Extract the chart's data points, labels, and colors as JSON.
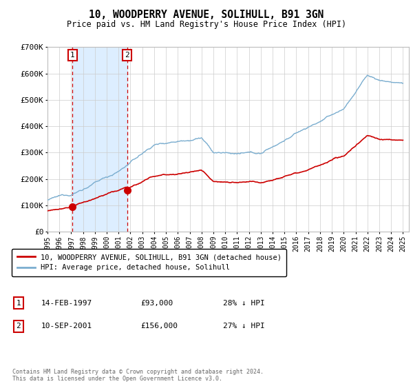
{
  "title": "10, WOODPERRY AVENUE, SOLIHULL, B91 3GN",
  "subtitle": "Price paid vs. HM Land Registry's House Price Index (HPI)",
  "ylim": [
    0,
    700000
  ],
  "yticks": [
    0,
    100000,
    200000,
    300000,
    400000,
    500000,
    600000,
    700000
  ],
  "ytick_labels": [
    "£0",
    "£100K",
    "£200K",
    "£300K",
    "£400K",
    "£500K",
    "£600K",
    "£700K"
  ],
  "xlim_start": 1995.0,
  "xlim_end": 2025.5,
  "sale1_year": 1997.12,
  "sale1_price": 93000,
  "sale2_year": 2001.71,
  "sale2_price": 156000,
  "red_color": "#cc0000",
  "blue_color": "#7aadcf",
  "shade_color": "#ddeeff",
  "grid_color": "#cccccc",
  "bg_color": "#ffffff",
  "legend_label_red": "10, WOODPERRY AVENUE, SOLIHULL, B91 3GN (detached house)",
  "legend_label_blue": "HPI: Average price, detached house, Solihull",
  "sale_table": [
    {
      "num": "1",
      "date": "14-FEB-1997",
      "price": "£93,000",
      "hpi": "28% ↓ HPI"
    },
    {
      "num": "2",
      "date": "10-SEP-2001",
      "price": "£156,000",
      "hpi": "27% ↓ HPI"
    }
  ],
  "footer": "Contains HM Land Registry data © Crown copyright and database right 2024.\nThis data is licensed under the Open Government Licence v3.0."
}
